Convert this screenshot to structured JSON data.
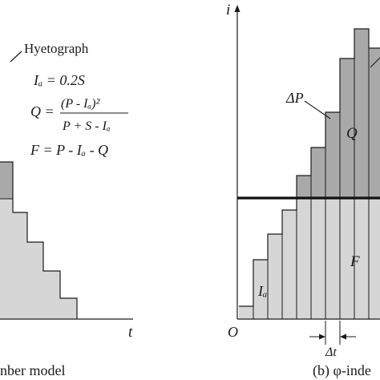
{
  "left_panel": {
    "hyetograph_label": "Hyetograph",
    "eq_ia": "Iₐ = 0.2S",
    "eq_q_left": "Q =",
    "eq_q_num": "(P - Iₐ)²",
    "eq_q_den": "P + S - Iₐ",
    "eq_f": "F = P - Iₐ - Q",
    "t_axis_label": "t",
    "caption": "nber model"
  },
  "right_panel": {
    "i_axis_label": "i",
    "origin_label": "O",
    "delta_p_label": "ΔP",
    "q_label": "Q",
    "f_label": "F",
    "ia_label": "Iₐ",
    "delta_t_label": "Δt",
    "caption": "(b) φ-inde"
  },
  "colors": {
    "dark_fill": "#a9a9a9",
    "light_fill": "#d6d6d6",
    "stroke": "#1a1a1a"
  }
}
